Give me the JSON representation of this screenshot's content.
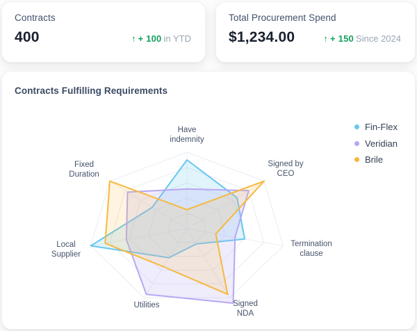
{
  "stat_cards": [
    {
      "label": "Contracts",
      "value": "400",
      "delta": "+ 100",
      "suffix": "in YTD"
    },
    {
      "label": "Total Procurement Spend",
      "value": "$1,234.00",
      "delta": "+ 150",
      "suffix": "Since 2024"
    }
  ],
  "ui": {
    "trend_up_icon": "↑"
  },
  "colors": {
    "positive": "#149e5b",
    "grid": "#e9ecf1",
    "spoke": "#edeff4"
  },
  "chart_data": {
    "type": "radar",
    "title": "Contracts Fulfilling Requirements",
    "categories": [
      "Have indemnity",
      "Signed by CEO",
      "Termination clause",
      "Signed NDA",
      "Utilities",
      "Local Supplier",
      "Fixed Duration"
    ],
    "axis_labels": [
      "Have\nindemnity",
      "Signed by\nCEO",
      "Termination\nclause",
      "Signed\nNDA",
      "Utilities",
      "Local\nSupplier",
      "Fixed\nDuration"
    ],
    "max": 100,
    "grid_levels": 5,
    "legend_position": "right",
    "series": [
      {
        "name": "Fin-Flex",
        "color": "#67c7f1",
        "fill": "rgba(103,199,241,0.20)",
        "values": [
          90,
          65,
          60,
          22,
          42,
          100,
          45
        ]
      },
      {
        "name": "Veridian",
        "color": "#b7a7f3",
        "fill": "rgba(183,167,243,0.22)",
        "values": [
          52,
          80,
          50,
          108,
          95,
          63,
          77
        ]
      },
      {
        "name": "Brile",
        "color": "#f6b93e",
        "fill": "rgba(246,185,62,0.16)",
        "values": [
          25,
          100,
          30,
          95,
          55,
          85,
          100
        ]
      }
    ]
  }
}
